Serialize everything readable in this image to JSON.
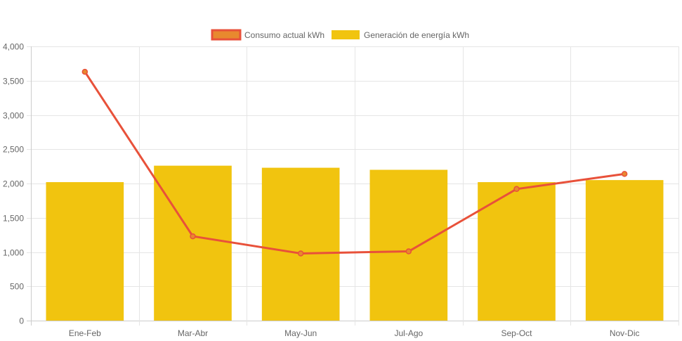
{
  "chart_data": {
    "type": "bar",
    "title": "",
    "xlabel": "",
    "ylabel": "",
    "categories": [
      "Ene-Feb",
      "Mar-Abr",
      "May-Jun",
      "Jul-Ago",
      "Sep-Oct",
      "Nov-Dic"
    ],
    "ylim": [
      0,
      4000
    ],
    "yticks": [
      0,
      500,
      1000,
      1500,
      2000,
      2500,
      3000,
      3500,
      4000
    ],
    "ytick_labels": [
      "0",
      "500",
      "1,000",
      "1,500",
      "2,000",
      "2,500",
      "3,000",
      "3,500",
      "4,000"
    ],
    "grid": true,
    "legend_position": "top-center",
    "series": [
      {
        "name": "Consumo actual kWh",
        "type": "line",
        "color": "#e8513a",
        "fill": "#e8892e",
        "values": [
          3630,
          1230,
          980,
          1010,
          1920,
          2140
        ]
      },
      {
        "name": "Generación de energía kWh",
        "type": "bar",
        "color": "#f1c40f",
        "values": [
          2020,
          2260,
          2230,
          2200,
          2020,
          2050
        ]
      }
    ]
  }
}
